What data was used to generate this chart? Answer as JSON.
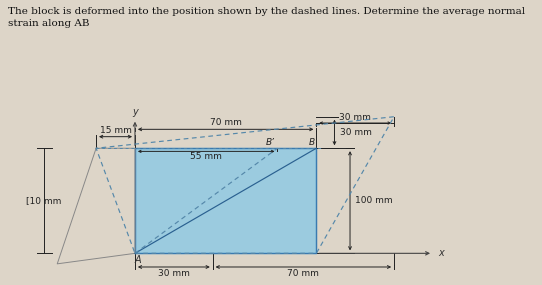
{
  "title_text": "The block is deformed into the position shown by the dashed lines. Determine the average normal\nstrain along AB",
  "title_fontsize": 7.5,
  "bg_color": "#ddd5c8",
  "rect_color": "#85c8e8",
  "rect_edge_color": "#3a7ab0",
  "dashed_color": "#5588aa",
  "dim_color": "#222222",
  "label_15mm": "15 mm",
  "label_70mm_top": "70 mm",
  "label_55mm": "55 mm",
  "label_30mm_top": "30 mm",
  "label_30mm_side": "30 mm",
  "label_100mm": "100 mm",
  "label_70mm_bot": "70 mm",
  "label_30mm_bot": "30 mm",
  "label_10mm": "[10 mm",
  "label_Bp": "B’",
  "label_B": "B",
  "label_A": "A",
  "label_x": "x",
  "label_y": "y"
}
